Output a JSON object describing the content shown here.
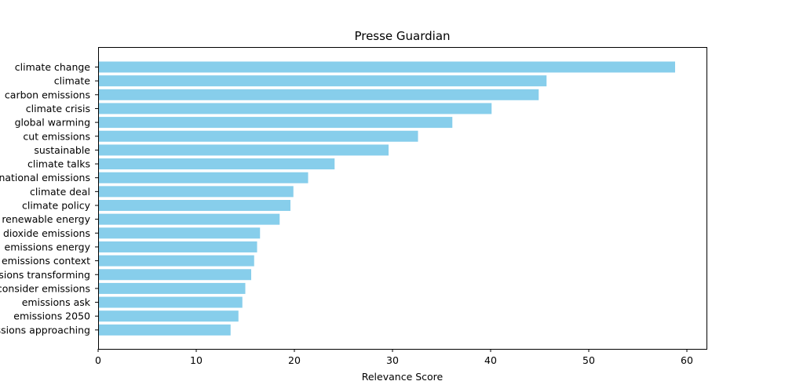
{
  "chart_data": {
    "type": "bar",
    "orientation": "horizontal",
    "title": "Presse Guardian",
    "xlabel": "Relevance Score",
    "ylabel": "",
    "xlim": [
      0,
      62
    ],
    "xticks": [
      0,
      10,
      20,
      30,
      40,
      50,
      60
    ],
    "grid": false,
    "bar_color": "#87ceeb",
    "categories": [
      "climate change",
      "climate",
      "carbon emissions",
      "climate crisis",
      "global warming",
      "cut emissions",
      "sustainable",
      "climate talks",
      "national emissions",
      "climate deal",
      "climate policy",
      "renewable energy",
      "dioxide emissions",
      "emissions energy",
      "emissions context",
      "emissions transforming",
      "consider emissions",
      "emissions ask",
      "emissions 2050",
      "emissions approaching"
    ],
    "values": [
      58.8,
      45.7,
      44.9,
      40.1,
      36.1,
      32.6,
      29.6,
      24.1,
      21.4,
      19.9,
      19.6,
      18.5,
      16.5,
      16.2,
      15.9,
      15.6,
      15.0,
      14.7,
      14.3,
      13.5
    ]
  }
}
